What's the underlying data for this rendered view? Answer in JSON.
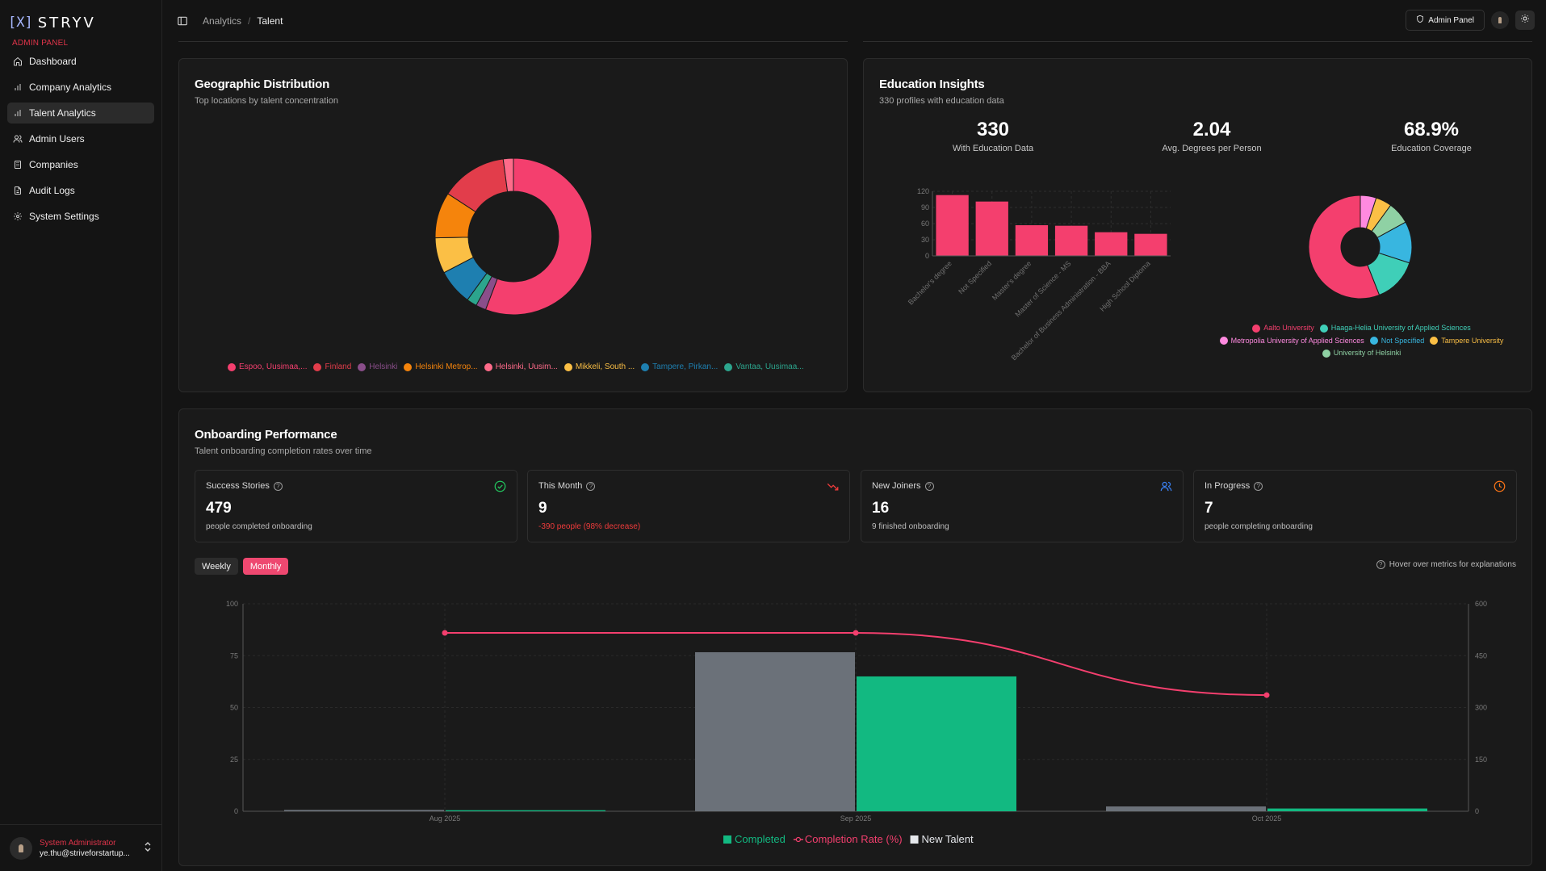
{
  "brand": {
    "mark": "[X]",
    "name": "STRYV"
  },
  "sidebar": {
    "section_label": "ADMIN PANEL",
    "items": [
      {
        "label": "Dashboard",
        "icon": "home-icon"
      },
      {
        "label": "Company Analytics",
        "icon": "bar-chart-icon"
      },
      {
        "label": "Talent Analytics",
        "icon": "bar-chart-icon",
        "active": true
      },
      {
        "label": "Admin Users",
        "icon": "users-icon"
      },
      {
        "label": "Companies",
        "icon": "building-icon"
      },
      {
        "label": "Audit Logs",
        "icon": "file-icon"
      },
      {
        "label": "System Settings",
        "icon": "gear-icon"
      }
    ],
    "user": {
      "role": "System Administrator",
      "email": "ye.thu@striveforstartup..."
    }
  },
  "header": {
    "breadcrumb": [
      "Analytics",
      "Talent"
    ],
    "admin_button": "Admin Panel"
  },
  "geo": {
    "title": "Geographic Distribution",
    "subtitle": "Top locations by talent concentration",
    "legend": [
      {
        "label": "Espoo, Uusimaa,...",
        "color": "#f43f6e"
      },
      {
        "label": "Finland",
        "color": "#e23d4b"
      },
      {
        "label": "Helsinki",
        "color": "#8a4e8a"
      },
      {
        "label": "Helsinki Metrop...",
        "color": "#f5840c"
      },
      {
        "label": "Helsinki, Uusim...",
        "color": "#ff6b8a"
      },
      {
        "label": "Mikkeli, South ...",
        "color": "#fbbf45"
      },
      {
        "label": "Tampere, Pirkan...",
        "color": "#1e7fb0"
      },
      {
        "label": "Vantaa, Uusimaa...",
        "color": "#2ca58d"
      }
    ]
  },
  "education": {
    "title": "Education Insights",
    "subtitle": "330 profiles with education data",
    "stats": [
      {
        "value": "330",
        "label": "With Education Data"
      },
      {
        "value": "2.04",
        "label": "Avg. Degrees per Person"
      },
      {
        "value": "68.9%",
        "label": "Education Coverage"
      }
    ],
    "legend": [
      {
        "label": "Aalto University",
        "color": "#f43f6e"
      },
      {
        "label": "Haaga-Helia University of Applied Sciences",
        "color": "#3fcfb8"
      },
      {
        "label": "Metropolia University of Applied Sciences",
        "color": "#ff8ae0"
      },
      {
        "label": "Not Specified",
        "color": "#38b6e0"
      },
      {
        "label": "Tampere University",
        "color": "#fbbf45"
      },
      {
        "label": "University of Helsinki",
        "color": "#8fd1a4"
      }
    ]
  },
  "onboarding": {
    "title": "Onboarding Performance",
    "subtitle": "Talent onboarding completion rates over time",
    "metrics": [
      {
        "label": "Success Stories",
        "value": "479",
        "desc": "people completed onboarding",
        "icon": "check-circle-icon",
        "icon_color": "#22c55e"
      },
      {
        "label": "This Month",
        "value": "9",
        "desc": "-390 people (98% decrease)",
        "icon": "trending-down-icon",
        "icon_color": "#ef3b3b"
      },
      {
        "label": "New Joiners",
        "value": "16",
        "desc": "9 finished onboarding",
        "icon": "users-icon",
        "icon_color": "#3b82f6"
      },
      {
        "label": "In Progress",
        "value": "7",
        "desc": "people completing onboarding",
        "icon": "clock-icon",
        "icon_color": "#f97316"
      }
    ],
    "tabs": [
      "Weekly",
      "Monthly"
    ],
    "active_tab": "Monthly",
    "hover_note": "Hover over metrics for explanations"
  },
  "chart_data": [
    {
      "type": "pie",
      "donut": true,
      "title": "",
      "labels": [
        "Espoo, Uusimaa,...",
        "Finland",
        "Helsinki",
        "Helsinki Metrop...",
        "Helsinki, Uusim...",
        "Mikkeli, South ...",
        "Tampere, Pirkan...",
        "Vantaa, Uusimaa..."
      ],
      "values": [
        53,
        13,
        2,
        9,
        2,
        7,
        7,
        2
      ]
    },
    {
      "type": "bar",
      "title": "",
      "categories": [
        "Bachelor's degree",
        "Not Specified",
        "Master's degree",
        "Master of Science - MS",
        "Bachelor of Business Administration - BBA",
        "High School Diploma"
      ],
      "values": [
        113,
        101,
        57,
        56,
        44,
        41
      ],
      "ylim": [
        0,
        120
      ],
      "yticks": [
        0,
        30,
        60,
        90,
        120
      ],
      "color": "#f43f6e",
      "grid": true
    },
    {
      "type": "pie",
      "donut": true,
      "title": "",
      "labels": [
        "Aalto University",
        "Metropolia University of Applied Sciences",
        "Tampere University",
        "University of Helsinki",
        "Not Specified",
        "Haaga-Helia University of Applied Sciences"
      ],
      "values": [
        56,
        5,
        5,
        7,
        13,
        14
      ]
    },
    {
      "type": "bar",
      "title": "",
      "categories": [
        "Aug 2025",
        "Sep 2025",
        "Oct 2025"
      ],
      "series": [
        {
          "name": "New Talent",
          "values": [
            4,
            460,
            14
          ],
          "axis": "right",
          "color": "#6b7179"
        },
        {
          "name": "Completed",
          "values": [
            3,
            390,
            8
          ],
          "axis": "right",
          "color": "#12b981"
        },
        {
          "name": "Completion Rate (%)",
          "values": [
            86,
            86,
            56
          ],
          "axis": "left",
          "type": "line",
          "color": "#f43f6e"
        }
      ],
      "ylim_left": [
        0,
        100
      ],
      "yticks_left": [
        0,
        25,
        50,
        75,
        100
      ],
      "ylim_right": [
        0,
        600
      ],
      "yticks_right": [
        0,
        150,
        300,
        450,
        600
      ],
      "legend": [
        "Completed",
        "Completion Rate (%)",
        "New Talent"
      ],
      "legend_position": "bottom",
      "grid": true
    }
  ]
}
